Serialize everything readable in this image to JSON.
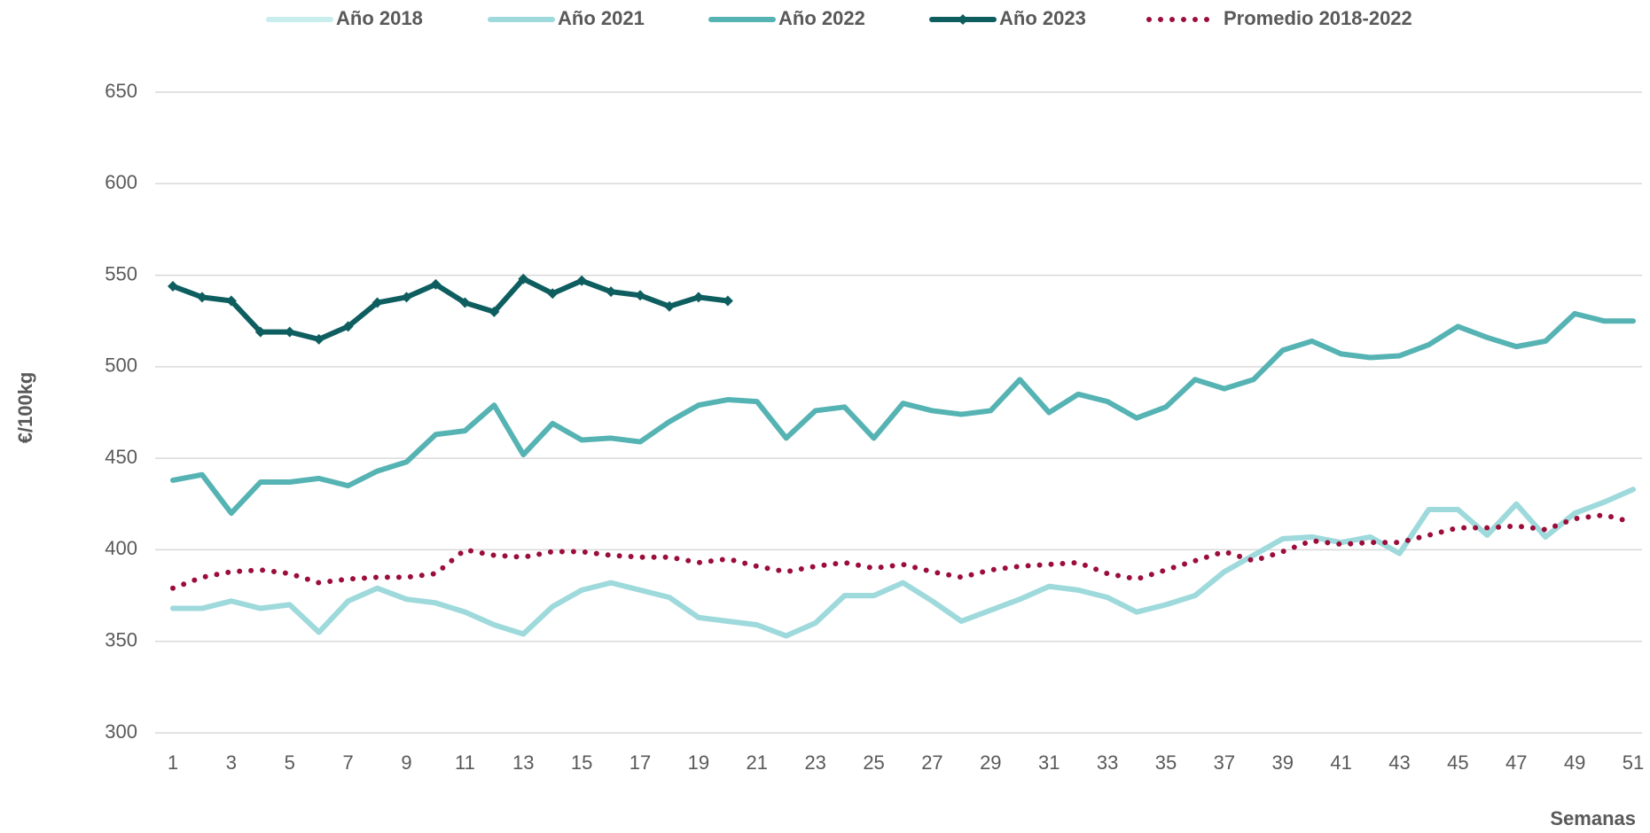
{
  "chart_data": {
    "type": "line",
    "y_label": "€/100kg",
    "x_label": "Semanas",
    "x": [
      1,
      2,
      3,
      4,
      5,
      6,
      7,
      8,
      9,
      10,
      11,
      12,
      13,
      14,
      15,
      16,
      17,
      18,
      19,
      20,
      21,
      22,
      23,
      24,
      25,
      26,
      27,
      28,
      29,
      30,
      31,
      32,
      33,
      34,
      35,
      36,
      37,
      38,
      39,
      40,
      41,
      42,
      43,
      44,
      45,
      46,
      47,
      48,
      49,
      50,
      51
    ],
    "xlim": [
      1,
      51
    ],
    "xticks": [
      1,
      3,
      5,
      7,
      9,
      11,
      13,
      15,
      17,
      19,
      21,
      23,
      25,
      27,
      29,
      31,
      33,
      35,
      37,
      39,
      41,
      43,
      45,
      47,
      49,
      51
    ],
    "ylim": [
      300,
      650
    ],
    "yticks": [
      300,
      350,
      400,
      450,
      500,
      550,
      600,
      650
    ],
    "grid": true,
    "legend": "top",
    "series": [
      {
        "name": "Año 2018",
        "color": "#c8eeee",
        "line_style": "solid",
        "values": [
          368,
          368,
          372,
          368,
          370,
          355,
          372,
          379,
          373,
          371,
          366,
          359,
          354,
          369,
          378,
          382,
          378,
          374,
          363,
          361,
          359,
          353,
          360,
          375,
          375,
          382,
          372,
          361,
          367,
          373,
          380,
          378,
          374,
          366,
          370,
          375,
          388,
          397,
          406,
          407,
          404,
          407,
          398,
          422,
          422,
          408,
          425,
          407,
          420,
          426,
          433
        ]
      },
      {
        "name": "Año 2021",
        "color": "#9ed9dc",
        "line_style": "solid",
        "values": [
          368,
          368,
          372,
          368,
          370,
          355,
          372,
          379,
          373,
          371,
          366,
          359,
          354,
          369,
          378,
          382,
          378,
          374,
          363,
          361,
          359,
          353,
          360,
          375,
          375,
          382,
          372,
          361,
          367,
          373,
          380,
          378,
          374,
          366,
          370,
          375,
          388,
          397,
          406,
          407,
          404,
          407,
          398,
          422,
          422,
          408,
          425,
          407,
          420,
          426,
          433
        ]
      },
      {
        "name": "Año 2022",
        "color": "#56b3b3",
        "line_style": "solid",
        "values": [
          438,
          441,
          420,
          437,
          437,
          439,
          435,
          443,
          448,
          463,
          465,
          479,
          452,
          469,
          460,
          461,
          459,
          470,
          479,
          482,
          481,
          461,
          476,
          478,
          461,
          480,
          476,
          474,
          476,
          493,
          475,
          485,
          481,
          472,
          478,
          493,
          488,
          493,
          509,
          514,
          507,
          505,
          506,
          512,
          522,
          516,
          511,
          514,
          529,
          525,
          525
        ]
      },
      {
        "name": "Año 2023",
        "color": "#0e5e60",
        "line_style": "solid",
        "marker": "diamond",
        "values": [
          544,
          538,
          536,
          519,
          519,
          515,
          522,
          535,
          538,
          545,
          535,
          530,
          548,
          540,
          547,
          541,
          539,
          533,
          538,
          536,
          null,
          null,
          null,
          null,
          null,
          null,
          null,
          null,
          null,
          null,
          null,
          null,
          null,
          null,
          null,
          null,
          null,
          null,
          null,
          null,
          null,
          null,
          null,
          null,
          null,
          null,
          null,
          null,
          null,
          null,
          null
        ]
      },
      {
        "name": "Promedio 2018-2022",
        "color": "#9b0d3a",
        "line_style": "dotted",
        "values": [
          379,
          385,
          388,
          389,
          387,
          382,
          384,
          385,
          385,
          387,
          400,
          397,
          396,
          399,
          399,
          397,
          396,
          396,
          393,
          395,
          391,
          388,
          391,
          393,
          390,
          392,
          388,
          385,
          389,
          391,
          392,
          393,
          387,
          384,
          389,
          394,
          399,
          394,
          399,
          405,
          403,
          404,
          404,
          408,
          412,
          412,
          413,
          411,
          417,
          419,
          415
        ]
      }
    ]
  }
}
